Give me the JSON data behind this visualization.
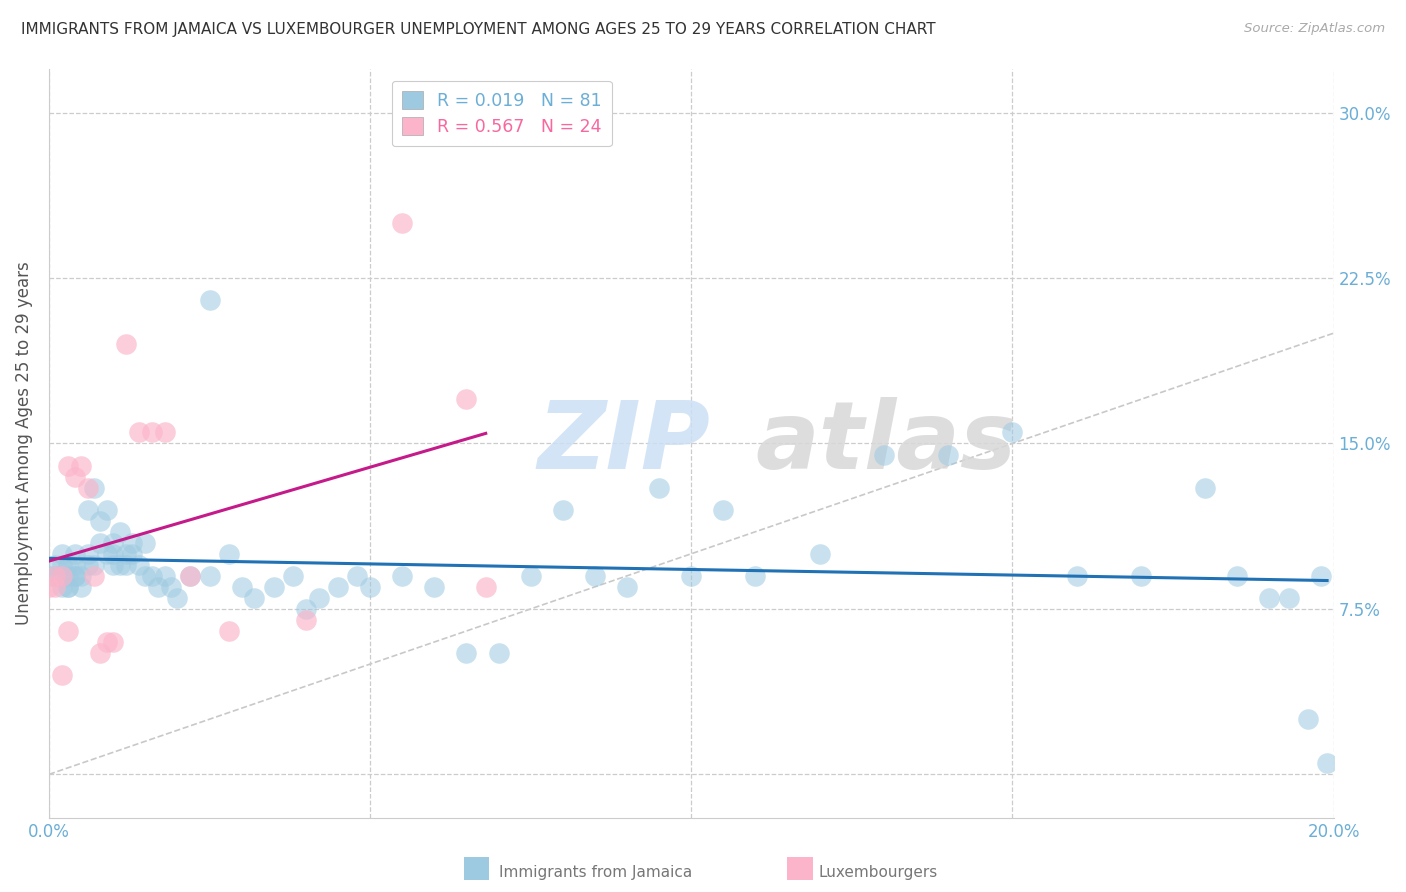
{
  "title": "IMMIGRANTS FROM JAMAICA VS LUXEMBOURGER UNEMPLOYMENT AMONG AGES 25 TO 29 YEARS CORRELATION CHART",
  "source": "Source: ZipAtlas.com",
  "ylabel": "Unemployment Among Ages 25 to 29 years",
  "xlim": [
    0.0,
    0.2
  ],
  "ylim": [
    -0.02,
    0.32
  ],
  "yticks": [
    0.0,
    0.075,
    0.15,
    0.225,
    0.3
  ],
  "ytick_labels": [
    "",
    "7.5%",
    "15.0%",
    "22.5%",
    "30.0%"
  ],
  "xticks": [
    0.0,
    0.05,
    0.1,
    0.15,
    0.2
  ],
  "xtick_labels": [
    "0.0%",
    "",
    "",
    "",
    "20.0%"
  ],
  "watermark_text": "ZIP",
  "watermark_text2": "atlas",
  "legend_entries": [
    {
      "label": "R = 0.019   N = 81",
      "color": "#6baed6"
    },
    {
      "label": "R = 0.567   N = 24",
      "color": "#f768a1"
    }
  ],
  "blue_scatter_color": "#9ecae1",
  "pink_scatter_color": "#fbb4c9",
  "blue_line_color": "#2171b5",
  "pink_line_color": "#c51b8a",
  "diagonal_line_color": "#bbbbbb",
  "grid_color": "#cccccc",
  "title_color": "#333333",
  "tick_color": "#6baed6",
  "right_tick_color": "#6baed6",
  "jamaica_x": [
    0.0,
    0.001,
    0.001,
    0.002,
    0.002,
    0.002,
    0.002,
    0.003,
    0.003,
    0.003,
    0.003,
    0.004,
    0.004,
    0.004,
    0.004,
    0.005,
    0.005,
    0.006,
    0.006,
    0.006,
    0.007,
    0.007,
    0.008,
    0.008,
    0.009,
    0.009,
    0.01,
    0.01,
    0.01,
    0.011,
    0.011,
    0.012,
    0.012,
    0.013,
    0.013,
    0.014,
    0.015,
    0.015,
    0.016,
    0.017,
    0.018,
    0.019,
    0.02,
    0.022,
    0.025,
    0.025,
    0.028,
    0.03,
    0.032,
    0.035,
    0.038,
    0.04,
    0.042,
    0.045,
    0.048,
    0.05,
    0.055,
    0.06,
    0.065,
    0.07,
    0.075,
    0.08,
    0.085,
    0.09,
    0.095,
    0.1,
    0.105,
    0.11,
    0.12,
    0.13,
    0.14,
    0.15,
    0.16,
    0.17,
    0.18,
    0.185,
    0.19,
    0.193,
    0.196,
    0.198,
    0.199
  ],
  "jamaica_y": [
    0.09,
    0.09,
    0.095,
    0.09,
    0.085,
    0.095,
    0.1,
    0.09,
    0.085,
    0.095,
    0.085,
    0.09,
    0.095,
    0.09,
    0.1,
    0.09,
    0.085,
    0.1,
    0.12,
    0.095,
    0.13,
    0.095,
    0.105,
    0.115,
    0.1,
    0.12,
    0.095,
    0.105,
    0.1,
    0.095,
    0.11,
    0.1,
    0.095,
    0.105,
    0.1,
    0.095,
    0.09,
    0.105,
    0.09,
    0.085,
    0.09,
    0.085,
    0.08,
    0.09,
    0.215,
    0.09,
    0.1,
    0.085,
    0.08,
    0.085,
    0.09,
    0.075,
    0.08,
    0.085,
    0.09,
    0.085,
    0.09,
    0.085,
    0.055,
    0.055,
    0.09,
    0.12,
    0.09,
    0.085,
    0.13,
    0.09,
    0.12,
    0.09,
    0.1,
    0.145,
    0.145,
    0.155,
    0.09,
    0.09,
    0.13,
    0.09,
    0.08,
    0.08,
    0.025,
    0.09,
    0.005
  ],
  "lux_x": [
    0.0,
    0.001,
    0.001,
    0.002,
    0.002,
    0.003,
    0.003,
    0.004,
    0.005,
    0.006,
    0.007,
    0.008,
    0.009,
    0.01,
    0.012,
    0.014,
    0.016,
    0.018,
    0.022,
    0.028,
    0.04,
    0.055,
    0.065,
    0.068
  ],
  "lux_y": [
    0.085,
    0.085,
    0.09,
    0.09,
    0.045,
    0.065,
    0.14,
    0.135,
    0.14,
    0.13,
    0.09,
    0.055,
    0.06,
    0.06,
    0.195,
    0.155,
    0.155,
    0.155,
    0.09,
    0.065,
    0.07,
    0.25,
    0.17,
    0.085
  ],
  "jamaica_R": 0.019,
  "lux_R": 0.567,
  "jamaica_N": 81,
  "lux_N": 24
}
